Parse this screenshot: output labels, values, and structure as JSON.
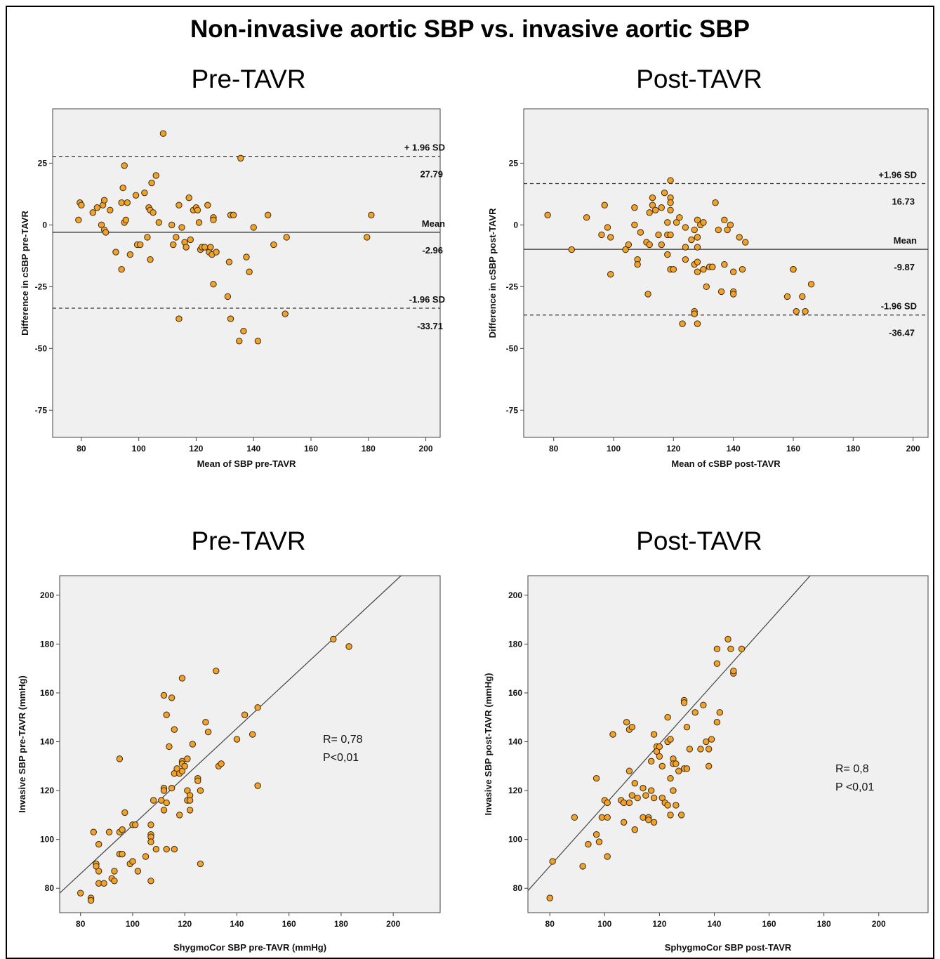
{
  "title": "Non-invasive aortic SBP vs. invasive aortic SBP",
  "chart_data": [
    {
      "id": "ba_pre",
      "type": "scatter",
      "subtitle": "Pre-TAVR",
      "xlabel": "Mean of SBP pre-TAVR",
      "ylabel": "Difference in cSBP pre-TAVR",
      "xlim": [
        70,
        205
      ],
      "ylim": [
        -86,
        47
      ],
      "xticks": [
        80,
        100,
        120,
        140,
        160,
        180,
        200
      ],
      "yticks": [
        25,
        0,
        -25,
        -50,
        -75
      ],
      "grid": false,
      "reference_lines": [
        {
          "y": 27.79,
          "style": "dashed",
          "label": "+ 1.96 SD",
          "value_label": "27.79"
        },
        {
          "y": -2.96,
          "style": "solid",
          "label": "Mean",
          "value_label": "-2.96"
        },
        {
          "y": -33.71,
          "style": "dashed",
          "label": "-1.96 SD",
          "value_label": "-33.71"
        }
      ],
      "points": [
        [
          108.5,
          37
        ],
        [
          79,
          2
        ],
        [
          79.5,
          9
        ],
        [
          80,
          8
        ],
        [
          84,
          5
        ],
        [
          85.5,
          7
        ],
        [
          87,
          0
        ],
        [
          87.5,
          8
        ],
        [
          88,
          10
        ],
        [
          88,
          -2
        ],
        [
          88.5,
          -3
        ],
        [
          90,
          6
        ],
        [
          92,
          -11
        ],
        [
          94,
          -18
        ],
        [
          94,
          9
        ],
        [
          94.5,
          15
        ],
        [
          95,
          1
        ],
        [
          95,
          24
        ],
        [
          95.5,
          2
        ],
        [
          96,
          9
        ],
        [
          97,
          -12
        ],
        [
          99,
          12
        ],
        [
          99.5,
          -8
        ],
        [
          100.5,
          -8
        ],
        [
          102,
          13
        ],
        [
          103,
          -5
        ],
        [
          103.5,
          7
        ],
        [
          104,
          -14
        ],
        [
          104,
          6
        ],
        [
          104.5,
          17
        ],
        [
          105,
          5
        ],
        [
          106,
          20
        ],
        [
          107,
          1
        ],
        [
          111.5,
          0
        ],
        [
          112,
          -8
        ],
        [
          113,
          -5
        ],
        [
          114,
          -38
        ],
        [
          114,
          8
        ],
        [
          115,
          -1
        ],
        [
          116,
          -7
        ],
        [
          116.5,
          -9
        ],
        [
          117.5,
          11
        ],
        [
          118,
          -6
        ],
        [
          119,
          6
        ],
        [
          120,
          7
        ],
        [
          120.5,
          6
        ],
        [
          121,
          1
        ],
        [
          121.5,
          -10
        ],
        [
          122,
          -9
        ],
        [
          123,
          -9
        ],
        [
          124,
          8
        ],
        [
          124.5,
          -11
        ],
        [
          125,
          -9
        ],
        [
          125.5,
          -12
        ],
        [
          126,
          3
        ],
        [
          126,
          2
        ],
        [
          126,
          -24
        ],
        [
          127,
          -11
        ],
        [
          131,
          -29
        ],
        [
          131.5,
          -15
        ],
        [
          132,
          4
        ],
        [
          132,
          -38
        ],
        [
          133,
          4
        ],
        [
          135,
          -47
        ],
        [
          135.5,
          27
        ],
        [
          136.5,
          -43
        ],
        [
          137.5,
          -13
        ],
        [
          138.5,
          -19
        ],
        [
          140,
          -1
        ],
        [
          141.5,
          -47
        ],
        [
          145,
          4
        ],
        [
          147,
          -8
        ],
        [
          151,
          -36
        ],
        [
          151.5,
          -5
        ],
        [
          179.5,
          -5
        ],
        [
          181,
          4
        ]
      ]
    },
    {
      "id": "ba_post",
      "type": "scatter",
      "subtitle": "Post-TAVR",
      "xlabel": "Mean of cSBP post-TAVR",
      "ylabel": "Difference in cSBP post-TAVR",
      "xlim": [
        70,
        205
      ],
      "ylim": [
        -86,
        47
      ],
      "xticks": [
        80,
        100,
        120,
        140,
        160,
        180,
        200
      ],
      "yticks": [
        25,
        0,
        -25,
        -50,
        -75
      ],
      "grid": false,
      "reference_lines": [
        {
          "y": 16.73,
          "style": "dashed",
          "label": "+1.96 SD",
          "value_label": "16.73"
        },
        {
          "y": -9.87,
          "style": "solid",
          "label": "Mean",
          "value_label": "-9.87"
        },
        {
          "y": -36.47,
          "style": "dashed",
          "label": "-1.96 SD",
          "value_label": "-36.47"
        }
      ],
      "points": [
        [
          78,
          4
        ],
        [
          86,
          -10
        ],
        [
          91,
          3
        ],
        [
          96,
          -4
        ],
        [
          97,
          8
        ],
        [
          98,
          -1
        ],
        [
          99,
          -5
        ],
        [
          99,
          -20
        ],
        [
          104,
          -10
        ],
        [
          105,
          -8
        ],
        [
          107,
          0
        ],
        [
          107,
          7
        ],
        [
          108,
          -14
        ],
        [
          108,
          -16
        ],
        [
          109,
          -3
        ],
        [
          111,
          -7
        ],
        [
          111.5,
          -28
        ],
        [
          112,
          5
        ],
        [
          112,
          -8
        ],
        [
          113,
          11
        ],
        [
          113,
          8
        ],
        [
          114,
          6
        ],
        [
          115,
          -4
        ],
        [
          116,
          -8
        ],
        [
          116,
          7
        ],
        [
          117,
          13
        ],
        [
          118,
          -4
        ],
        [
          118,
          -12
        ],
        [
          118,
          1
        ],
        [
          119,
          -4
        ],
        [
          119,
          -18
        ],
        [
          119,
          18
        ],
        [
          119,
          11
        ],
        [
          119,
          9
        ],
        [
          119,
          6
        ],
        [
          120,
          -18
        ],
        [
          121,
          1
        ],
        [
          122,
          3
        ],
        [
          123,
          -40
        ],
        [
          124,
          -14
        ],
        [
          124,
          -9
        ],
        [
          124,
          -1
        ],
        [
          126,
          -6
        ],
        [
          127,
          -2
        ],
        [
          127,
          -16
        ],
        [
          127,
          -35
        ],
        [
          127,
          -36
        ],
        [
          128,
          -5
        ],
        [
          128,
          -19
        ],
        [
          128,
          -40
        ],
        [
          128,
          -9
        ],
        [
          128,
          2
        ],
        [
          128,
          -15
        ],
        [
          129,
          0
        ],
        [
          130,
          -18
        ],
        [
          130,
          1
        ],
        [
          131,
          -25
        ],
        [
          132,
          -17
        ],
        [
          133,
          -17
        ],
        [
          134,
          9
        ],
        [
          135,
          -2
        ],
        [
          136,
          -27
        ],
        [
          137,
          2
        ],
        [
          137,
          -16
        ],
        [
          138,
          -2
        ],
        [
          139,
          0
        ],
        [
          140,
          -27
        ],
        [
          140,
          -19
        ],
        [
          140,
          -28
        ],
        [
          142,
          -5
        ],
        [
          143,
          -18
        ],
        [
          144,
          -7
        ],
        [
          158,
          -29
        ],
        [
          160,
          -18
        ],
        [
          160,
          -18
        ],
        [
          161,
          -35
        ],
        [
          163,
          -29
        ],
        [
          164,
          -35
        ],
        [
          166,
          -24
        ]
      ]
    },
    {
      "id": "corr_pre",
      "type": "scatter",
      "subtitle": "Pre-TAVR",
      "xlabel": "ShygmoCor SBP pre-TAVR (mmHg)",
      "ylabel": "Invasive SBP pre-TAVR (mmHg)",
      "xlim": [
        72,
        218
      ],
      "ylim": [
        70,
        208
      ],
      "xticks": [
        80,
        100,
        120,
        140,
        160,
        180,
        200
      ],
      "yticks": [
        80,
        100,
        120,
        140,
        160,
        180,
        200
      ],
      "grid": false,
      "fit_line": {
        "x": [
          72,
          203
        ],
        "y": [
          78,
          208
        ]
      },
      "stats": [
        "R= 0,78",
        "P<0,01"
      ],
      "points": [
        [
          80,
          78
        ],
        [
          84,
          76
        ],
        [
          84,
          75
        ],
        [
          85,
          103
        ],
        [
          86,
          90
        ],
        [
          86,
          89
        ],
        [
          87,
          98
        ],
        [
          87,
          87
        ],
        [
          87,
          82
        ],
        [
          89,
          82
        ],
        [
          91,
          103
        ],
        [
          92,
          84
        ],
        [
          93,
          87
        ],
        [
          93,
          83
        ],
        [
          95,
          133
        ],
        [
          95,
          103
        ],
        [
          95,
          94
        ],
        [
          96,
          104
        ],
        [
          96,
          94
        ],
        [
          97,
          111
        ],
        [
          99,
          90
        ],
        [
          100,
          106
        ],
        [
          100,
          91
        ],
        [
          101,
          106
        ],
        [
          102,
          87
        ],
        [
          105,
          93
        ],
        [
          107,
          106
        ],
        [
          107,
          102
        ],
        [
          107,
          101
        ],
        [
          107,
          99
        ],
        [
          107,
          83
        ],
        [
          108,
          116
        ],
        [
          109,
          96
        ],
        [
          111,
          116
        ],
        [
          112,
          121
        ],
        [
          112,
          120
        ],
        [
          112,
          112
        ],
        [
          112,
          159
        ],
        [
          113,
          96
        ],
        [
          113,
          151
        ],
        [
          113,
          115
        ],
        [
          114,
          138
        ],
        [
          115,
          121
        ],
        [
          115,
          158
        ],
        [
          116,
          145
        ],
        [
          116,
          96
        ],
        [
          116,
          127
        ],
        [
          117,
          129
        ],
        [
          118,
          110
        ],
        [
          118,
          127
        ],
        [
          119,
          166
        ],
        [
          119,
          132
        ],
        [
          119,
          131
        ],
        [
          119,
          128
        ],
        [
          120,
          130
        ],
        [
          121,
          133
        ],
        [
          121,
          120
        ],
        [
          121,
          116
        ],
        [
          122,
          112
        ],
        [
          122,
          118
        ],
        [
          122,
          116
        ],
        [
          123,
          139
        ],
        [
          125,
          125
        ],
        [
          125,
          124
        ],
        [
          126,
          120
        ],
        [
          126,
          90
        ],
        [
          128,
          148
        ],
        [
          129,
          144
        ],
        [
          132,
          169
        ],
        [
          133,
          130
        ],
        [
          134,
          131
        ],
        [
          140,
          141
        ],
        [
          143,
          151
        ],
        [
          146,
          143
        ],
        [
          148,
          154
        ],
        [
          148,
          122
        ],
        [
          177,
          182
        ],
        [
          183,
          179
        ]
      ]
    },
    {
      "id": "corr_post",
      "type": "scatter",
      "subtitle": "Post-TAVR",
      "xlabel": "SphygmoCor SBP post-TAVR",
      "ylabel": "Invasive SBP post-TAVR (mmHg)",
      "xlim": [
        72,
        218
      ],
      "ylim": [
        70,
        208
      ],
      "xticks": [
        80,
        100,
        120,
        140,
        160,
        180,
        200
      ],
      "yticks": [
        80,
        100,
        120,
        140,
        160,
        180,
        200
      ],
      "grid": false,
      "fit_line": {
        "x": [
          72,
          175
        ],
        "y": [
          79,
          208
        ]
      },
      "stats": [
        "R= 0,8",
        "P <0,01"
      ],
      "points": [
        [
          80,
          76
        ],
        [
          81,
          91
        ],
        [
          89,
          109
        ],
        [
          92,
          89
        ],
        [
          94,
          98
        ],
        [
          97,
          102
        ],
        [
          97,
          125
        ],
        [
          98,
          99
        ],
        [
          99,
          109
        ],
        [
          100,
          116
        ],
        [
          101,
          115
        ],
        [
          101,
          109
        ],
        [
          101,
          93
        ],
        [
          103,
          143
        ],
        [
          106,
          116
        ],
        [
          107,
          115
        ],
        [
          107,
          107
        ],
        [
          108,
          148
        ],
        [
          109,
          115
        ],
        [
          109,
          128
        ],
        [
          109,
          145
        ],
        [
          110,
          146
        ],
        [
          110,
          118
        ],
        [
          111,
          123
        ],
        [
          111,
          104
        ],
        [
          112,
          117
        ],
        [
          114,
          109
        ],
        [
          114,
          121
        ],
        [
          115,
          118
        ],
        [
          116,
          109
        ],
        [
          116,
          108
        ],
        [
          117,
          120
        ],
        [
          117,
          132
        ],
        [
          118,
          117
        ],
        [
          118,
          107
        ],
        [
          118,
          143
        ],
        [
          119,
          138
        ],
        [
          119,
          136
        ],
        [
          120,
          134
        ],
        [
          120,
          138
        ],
        [
          121,
          117
        ],
        [
          121,
          130
        ],
        [
          122,
          115
        ],
        [
          123,
          114
        ],
        [
          123,
          150
        ],
        [
          123,
          140
        ],
        [
          124,
          141
        ],
        [
          124,
          125
        ],
        [
          124,
          110
        ],
        [
          125,
          133
        ],
        [
          125,
          131
        ],
        [
          125,
          120
        ],
        [
          126,
          131
        ],
        [
          126,
          114
        ],
        [
          127,
          128
        ],
        [
          128,
          110
        ],
        [
          129,
          157
        ],
        [
          129,
          129
        ],
        [
          129,
          156
        ],
        [
          130,
          129
        ],
        [
          130,
          146
        ],
        [
          131,
          137
        ],
        [
          133,
          152
        ],
        [
          135,
          137
        ],
        [
          136,
          155
        ],
        [
          137,
          140
        ],
        [
          138,
          137
        ],
        [
          138,
          130
        ],
        [
          139,
          141
        ],
        [
          141,
          148
        ],
        [
          141,
          172
        ],
        [
          141,
          178
        ],
        [
          142,
          152
        ],
        [
          145,
          182
        ],
        [
          146,
          178
        ],
        [
          147,
          168
        ],
        [
          147,
          169
        ],
        [
          150,
          178
        ]
      ]
    }
  ]
}
